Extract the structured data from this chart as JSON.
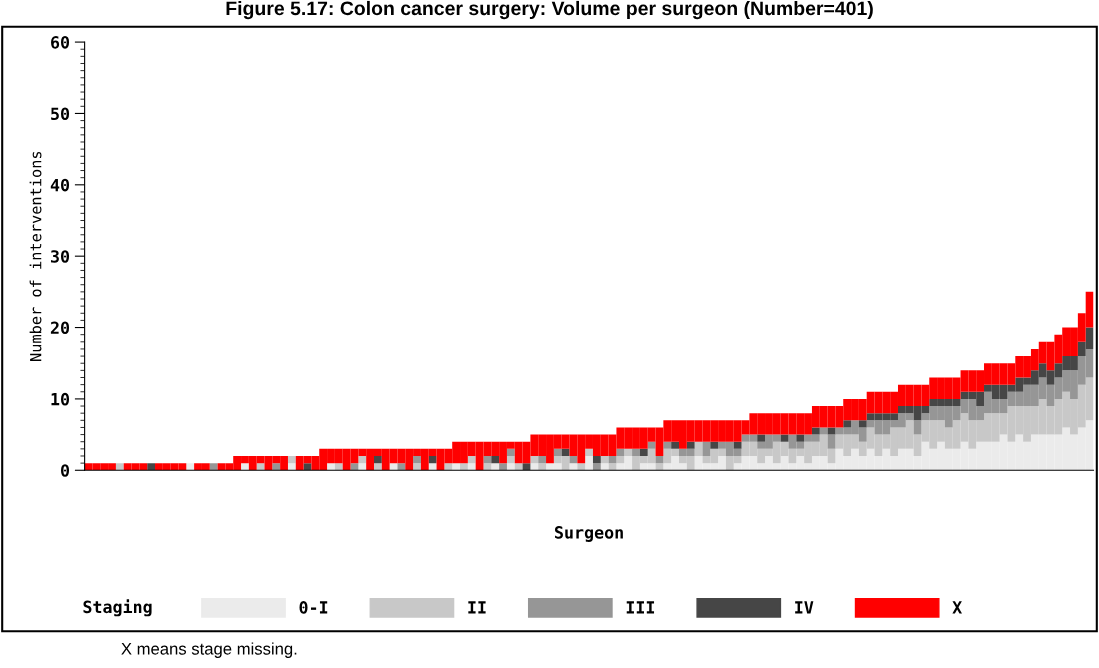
{
  "chart_data": {
    "type": "bar",
    "stacked": true,
    "title": "Figure 5.17: Colon cancer surgery: Volume per surgeon (Number=401)",
    "xlabel": "Surgeon",
    "ylabel": "Number of interventions",
    "legend_title": "Staging",
    "annotations": [
      "X means stage missing."
    ],
    "ylim": [
      0,
      60
    ],
    "yticks": [
      0,
      10,
      20,
      30,
      40,
      50,
      60
    ],
    "grid": false,
    "legend": "bottom",
    "categories": [
      null,
      null,
      null,
      null,
      null,
      null,
      null,
      null,
      null,
      null,
      null,
      null,
      null,
      null,
      null,
      null,
      null,
      null,
      null,
      null,
      null,
      null,
      null,
      null,
      null,
      null,
      null,
      null,
      null,
      null,
      null,
      null,
      null,
      null,
      null,
      null,
      null,
      null,
      null,
      null,
      null,
      null,
      null,
      null,
      null,
      null,
      null,
      null,
      null,
      null,
      null,
      null,
      null,
      null,
      null,
      null,
      null,
      null,
      null,
      null,
      null,
      null,
      null,
      null,
      null,
      null,
      null,
      null,
      null,
      null,
      null,
      null,
      null,
      null,
      null,
      null,
      null,
      null,
      null,
      null,
      null,
      null,
      null,
      null,
      null,
      null,
      null,
      null,
      null,
      null,
      null,
      null,
      null,
      null,
      null,
      null,
      null,
      null,
      null,
      null,
      null,
      null,
      null,
      null,
      null,
      null,
      null,
      null,
      null,
      null,
      null,
      null,
      null,
      null,
      null,
      null,
      null,
      null,
      null,
      null,
      null,
      null,
      null,
      null,
      null,
      null,
      null,
      null,
      null
    ],
    "series": [
      {
        "name": "0-I",
        "color": "#ebebeb",
        "values": [
          0,
          0,
          0,
          0,
          0,
          0,
          0,
          0,
          0,
          0,
          0,
          0,
          0,
          1,
          0,
          0,
          0,
          0,
          0,
          0,
          1,
          0,
          0,
          0,
          0,
          0,
          1,
          0,
          0,
          0,
          0,
          1,
          0,
          0,
          0,
          1,
          0,
          0,
          0,
          1,
          0,
          0,
          0,
          0,
          1,
          0,
          0,
          1,
          0,
          1,
          0,
          0,
          1,
          0,
          1,
          0,
          0,
          1,
          0,
          1,
          1,
          0,
          1,
          0,
          2,
          0,
          1,
          0,
          1,
          2,
          0,
          1,
          1,
          0,
          1,
          2,
          1,
          0,
          2,
          1,
          1,
          2,
          0,
          1,
          2,
          2,
          1,
          2,
          1,
          2,
          1,
          2,
          1,
          2,
          2,
          1,
          3,
          2,
          3,
          2,
          3,
          2,
          3,
          2,
          3,
          3,
          2,
          4,
          3,
          4,
          3,
          3,
          4,
          3,
          4,
          4,
          4,
          5,
          4,
          5,
          4,
          5,
          5,
          5,
          5,
          6,
          5,
          6,
          7
        ]
      },
      {
        "name": "II",
        "color": "#c8c8c8",
        "values": [
          0,
          0,
          0,
          0,
          1,
          0,
          0,
          0,
          0,
          0,
          0,
          0,
          0,
          0,
          0,
          0,
          0,
          0,
          0,
          0,
          0,
          0,
          1,
          0,
          0,
          0,
          1,
          0,
          0,
          0,
          0,
          0,
          1,
          0,
          0,
          1,
          0,
          1,
          0,
          0,
          0,
          0,
          1,
          0,
          0,
          0,
          1,
          0,
          1,
          1,
          0,
          1,
          0,
          0,
          1,
          1,
          0,
          1,
          1,
          0,
          1,
          2,
          0,
          1,
          1,
          0,
          1,
          1,
          1,
          1,
          2,
          1,
          2,
          1,
          2,
          1,
          1,
          2,
          2,
          1,
          2,
          1,
          2,
          1,
          2,
          2,
          2,
          1,
          3,
          2,
          2,
          1,
          3,
          2,
          3,
          2,
          2,
          3,
          2,
          2,
          3,
          3,
          2,
          4,
          3,
          4,
          3,
          3,
          4,
          3,
          3,
          4,
          4,
          4,
          3,
          4,
          4,
          3,
          5,
          4,
          5,
          4,
          5,
          4,
          5,
          5,
          5,
          6,
          6
        ]
      },
      {
        "name": "III",
        "color": "#969696",
        "values": [
          0,
          0,
          0,
          0,
          0,
          0,
          0,
          0,
          0,
          0,
          0,
          0,
          0,
          0,
          0,
          0,
          1,
          0,
          0,
          0,
          0,
          0,
          0,
          0,
          1,
          0,
          0,
          0,
          0,
          0,
          0,
          0,
          0,
          0,
          1,
          0,
          0,
          0,
          0,
          0,
          1,
          0,
          1,
          0,
          0,
          0,
          0,
          0,
          0,
          0,
          0,
          1,
          0,
          1,
          1,
          0,
          0,
          0,
          1,
          0,
          1,
          0,
          1,
          0,
          0,
          1,
          0,
          1,
          1,
          0,
          1,
          0,
          1,
          1,
          1,
          0,
          1,
          1,
          0,
          2,
          0,
          1,
          2,
          1,
          1,
          1,
          1,
          2,
          1,
          0,
          2,
          1,
          1,
          1,
          1,
          2,
          1,
          1,
          2,
          2,
          1,
          2,
          2,
          1,
          2,
          1,
          2,
          1,
          2,
          2,
          3,
          2,
          2,
          3,
          2,
          3,
          2,
          2,
          2,
          2,
          3,
          3,
          3,
          3,
          3,
          3,
          4,
          4,
          4
        ]
      },
      {
        "name": "IV",
        "color": "#464646",
        "values": [
          0,
          0,
          0,
          0,
          0,
          0,
          0,
          0,
          1,
          0,
          0,
          0,
          0,
          0,
          0,
          0,
          0,
          0,
          0,
          0,
          0,
          0,
          0,
          0,
          0,
          0,
          0,
          0,
          1,
          0,
          0,
          0,
          0,
          0,
          0,
          0,
          0,
          1,
          0,
          0,
          0,
          0,
          0,
          0,
          1,
          0,
          0,
          0,
          0,
          0,
          0,
          0,
          1,
          0,
          0,
          0,
          1,
          0,
          0,
          0,
          0,
          1,
          0,
          0,
          0,
          1,
          0,
          0,
          0,
          0,
          0,
          1,
          0,
          0,
          0,
          1,
          0,
          1,
          0,
          0,
          1,
          0,
          0,
          1,
          0,
          0,
          1,
          0,
          0,
          1,
          0,
          1,
          0,
          1,
          0,
          1,
          0,
          1,
          0,
          1,
          1,
          1,
          1,
          1,
          1,
          1,
          2,
          1,
          1,
          1,
          1,
          1,
          1,
          1,
          2,
          1,
          2,
          2,
          1,
          2,
          1,
          2,
          2,
          2,
          2,
          2,
          2,
          2,
          3
        ]
      },
      {
        "name": "X",
        "color": "#ff0000",
        "values": [
          1,
          1,
          1,
          1,
          0,
          1,
          1,
          1,
          0,
          1,
          1,
          1,
          1,
          0,
          1,
          1,
          0,
          1,
          1,
          2,
          1,
          2,
          1,
          2,
          1,
          2,
          0,
          2,
          1,
          2,
          3,
          2,
          2,
          3,
          2,
          1,
          3,
          1,
          3,
          2,
          2,
          3,
          1,
          3,
          1,
          3,
          2,
          3,
          3,
          2,
          4,
          2,
          2,
          3,
          1,
          3,
          3,
          3,
          3,
          4,
          2,
          2,
          3,
          4,
          2,
          3,
          3,
          3,
          3,
          3,
          3,
          3,
          2,
          4,
          3,
          3,
          4,
          3,
          3,
          3,
          3,
          3,
          3,
          3,
          2,
          3,
          3,
          3,
          3,
          3,
          3,
          3,
          3,
          3,
          3,
          3,
          3,
          3,
          3,
          3,
          3,
          3,
          3,
          3,
          3,
          3,
          3,
          3,
          3,
          3,
          3,
          3,
          3,
          3,
          3,
          3,
          3,
          3,
          3,
          3,
          3,
          3,
          3,
          4,
          4,
          4,
          4,
          4,
          5
        ]
      }
    ]
  }
}
